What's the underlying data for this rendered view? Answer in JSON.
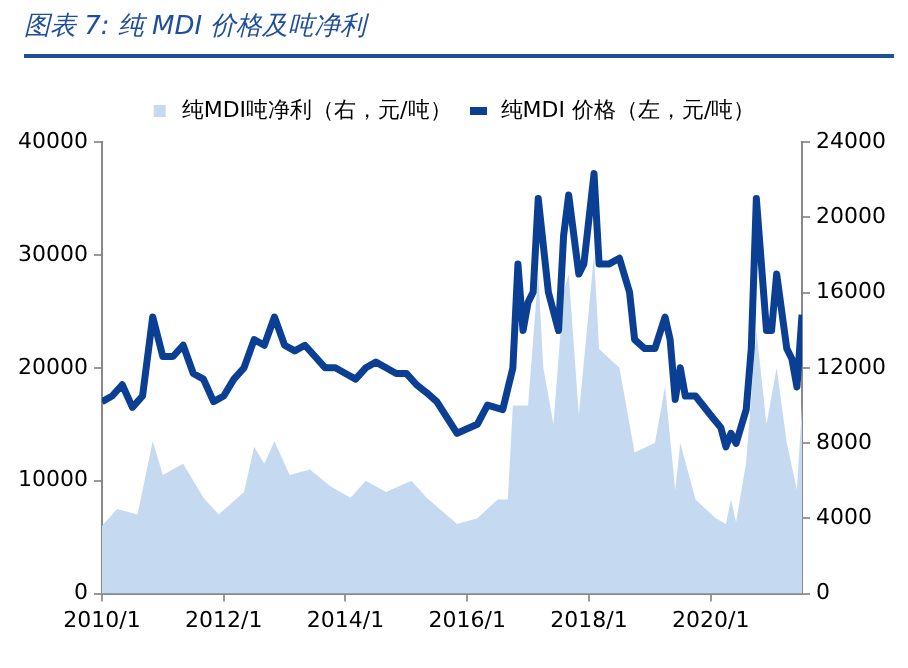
{
  "chart_data": {
    "type": "line",
    "title": "图表 7:  纯 MDI 价格及吨净利",
    "xlim": [
      "2010-01",
      "2021-07"
    ],
    "xticks": [
      {
        "value": "2010-01",
        "label": "2010/1"
      },
      {
        "value": "2012-01",
        "label": "2012/1"
      },
      {
        "value": "2014-01",
        "label": "2014/1"
      },
      {
        "value": "2016-01",
        "label": "2016/1"
      },
      {
        "value": "2018-01",
        "label": "2018/1"
      },
      {
        "value": "2020-01",
        "label": "2020/1"
      }
    ],
    "ylim": [
      0,
      40000
    ],
    "yticks": [
      0,
      10000,
      20000,
      30000,
      40000
    ],
    "y2lim": [
      0,
      24000
    ],
    "y2ticks": [
      0,
      4000,
      8000,
      12000,
      16000,
      20000,
      24000
    ],
    "grid": false,
    "legend": "top",
    "marker": "none",
    "series": [
      {
        "name": "纯MDI吨净利（右，元/吨）",
        "type": "area",
        "axis": "y2",
        "color": "#c5d9f1",
        "x": [
          "2010-01",
          "2010-04",
          "2010-08",
          "2010-11",
          "2011-01",
          "2011-05",
          "2011-09",
          "2011-12",
          "2012-05",
          "2012-07",
          "2012-09",
          "2012-11",
          "2013-02",
          "2013-06",
          "2013-10",
          "2014-02",
          "2014-05",
          "2014-09",
          "2015-02",
          "2015-05",
          "2015-11",
          "2016-03",
          "2016-07",
          "2016-09",
          "2016-10",
          "2017-01",
          "2017-03",
          "2017-04",
          "2017-06",
          "2017-08",
          "2017-09",
          "2017-11",
          "2018-02",
          "2018-03",
          "2018-07",
          "2018-10",
          "2019-02",
          "2019-04",
          "2019-06",
          "2019-07",
          "2019-10",
          "2020-02",
          "2020-04",
          "2020-05",
          "2020-06",
          "2020-08",
          "2020-10",
          "2020-12",
          "2021-02",
          "2021-04",
          "2021-06",
          "2021-07"
        ],
        "values": [
          3600,
          4500,
          4200,
          8100,
          6300,
          6900,
          5100,
          4200,
          5400,
          7800,
          6900,
          8100,
          6300,
          6600,
          5700,
          5100,
          6000,
          5400,
          6000,
          5100,
          3700,
          4000,
          5000,
          5000,
          10000,
          10000,
          17000,
          12000,
          9000,
          16000,
          17000,
          9500,
          18000,
          13000,
          12000,
          7500,
          8000,
          11000,
          5500,
          8000,
          5000,
          4000,
          3700,
          5000,
          3800,
          7000,
          14000,
          9000,
          12000,
          8000,
          5500,
          10000
        ]
      },
      {
        "name": "纯MDI 价格（左，元/吨）",
        "type": "line",
        "color": "#0b3f94",
        "x": [
          "2010-01",
          "2010-03",
          "2010-05",
          "2010-07",
          "2010-09",
          "2010-11",
          "2011-01",
          "2011-03",
          "2011-05",
          "2011-07",
          "2011-09",
          "2011-11",
          "2012-01",
          "2012-03",
          "2012-05",
          "2012-07",
          "2012-09",
          "2012-11",
          "2013-01",
          "2013-03",
          "2013-05",
          "2013-07",
          "2013-09",
          "2013-11",
          "2014-01",
          "2014-03",
          "2014-05",
          "2014-07",
          "2014-09",
          "2014-11",
          "2015-01",
          "2015-03",
          "2015-05",
          "2015-07",
          "2015-11",
          "2016-03",
          "2016-05",
          "2016-08",
          "2016-10",
          "2016-11",
          "2016-12",
          "2017-01",
          "2017-02",
          "2017-03",
          "2017-05",
          "2017-07",
          "2017-08",
          "2017-09",
          "2017-11",
          "2017-12",
          "2018-02",
          "2018-03",
          "2018-05",
          "2018-07",
          "2018-09",
          "2018-10",
          "2018-12",
          "2019-02",
          "2019-04",
          "2019-05",
          "2019-06",
          "2019-07",
          "2019-08",
          "2019-10",
          "2020-01",
          "2020-03",
          "2020-04",
          "2020-05",
          "2020-06",
          "2020-08",
          "2020-09",
          "2020-10",
          "2020-12",
          "2021-01",
          "2021-02",
          "2021-04",
          "2021-05",
          "2021-06",
          "2021-07"
        ],
        "values": [
          17000,
          17500,
          18500,
          16500,
          17500,
          24500,
          21000,
          21000,
          22000,
          19500,
          19000,
          17000,
          17500,
          19000,
          20000,
          22500,
          22000,
          24500,
          22000,
          21500,
          22000,
          21000,
          20000,
          20000,
          19500,
          19000,
          20000,
          20500,
          20000,
          19500,
          19500,
          18500,
          17800,
          17000,
          14200,
          15000,
          16700,
          16300,
          20000,
          29200,
          23300,
          25800,
          26700,
          35000,
          26700,
          23300,
          31700,
          35300,
          28300,
          29200,
          37200,
          29200,
          29200,
          29700,
          26700,
          22500,
          21700,
          21700,
          24500,
          22500,
          17200,
          20000,
          17500,
          17500,
          15800,
          14700,
          13000,
          14200,
          13300,
          16300,
          21700,
          35000,
          23300,
          23300,
          28300,
          21700,
          20800,
          18300,
          24700
        ]
      }
    ]
  }
}
